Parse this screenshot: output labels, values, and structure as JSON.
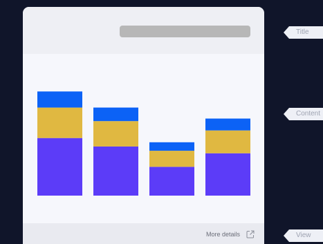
{
  "footer": {
    "link_label": "More details"
  },
  "callouts": {
    "title": "Title",
    "content": "Content",
    "view": "View"
  },
  "chart_data": {
    "type": "bar",
    "stacked": true,
    "categories": [
      "",
      "",
      "",
      ""
    ],
    "series": [
      {
        "values": [
          68,
          58,
          34,
          50
        ],
        "color": "#5c3cf8"
      },
      {
        "values": [
          36,
          30,
          19,
          27
        ],
        "color": "#e0b841"
      },
      {
        "values": [
          19,
          16,
          10,
          14
        ],
        "color": "#0c62f6"
      }
    ],
    "ylim": [
      0,
      160
    ],
    "grid": false,
    "legend": "none"
  },
  "colors": {
    "background": "#10152a",
    "card": "#f6f7fc",
    "header": "#eeeff4",
    "footer": "#e9eaf0"
  },
  "icons": {
    "footer_link": "external-link-icon"
  }
}
